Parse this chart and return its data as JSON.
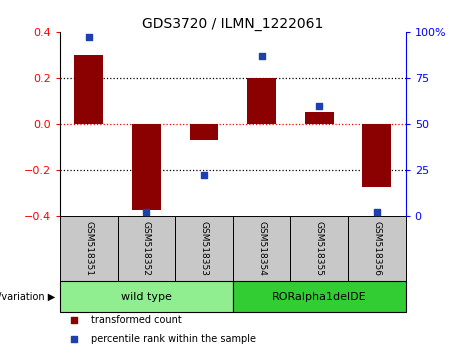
{
  "title": "GDS3720 / ILMN_1222061",
  "samples": [
    "GSM518351",
    "GSM518352",
    "GSM518353",
    "GSM518354",
    "GSM518355",
    "GSM518356"
  ],
  "transformed_count": [
    0.3,
    -0.375,
    -0.07,
    0.2,
    0.05,
    -0.275
  ],
  "percentile_rank": [
    97,
    2,
    22,
    87,
    60,
    2
  ],
  "ylim_left": [
    -0.4,
    0.4
  ],
  "ylim_right": [
    0,
    100
  ],
  "yticks_left": [
    -0.4,
    -0.2,
    0.0,
    0.2,
    0.4
  ],
  "yticks_right": [
    0,
    25,
    50,
    75,
    100
  ],
  "yticklabels_right": [
    "0",
    "25",
    "50",
    "75",
    "100%"
  ],
  "bar_color": "#8B0000",
  "scatter_color": "#1E40AF",
  "groups": [
    {
      "label": "wild type",
      "sample_indices": [
        0,
        1,
        2
      ],
      "color": "#90EE90"
    },
    {
      "label": "RORalpha1delDE",
      "sample_indices": [
        3,
        4,
        5
      ],
      "color": "#32CD32"
    }
  ],
  "group_label": "genotype/variation",
  "legend_items": [
    {
      "label": "transformed count",
      "color": "#8B0000"
    },
    {
      "label": "percentile rank within the sample",
      "color": "#1E40AF"
    }
  ],
  "bg_color": "#FFFFFF",
  "sample_box_color": "#C8C8C8",
  "bar_width": 0.5
}
